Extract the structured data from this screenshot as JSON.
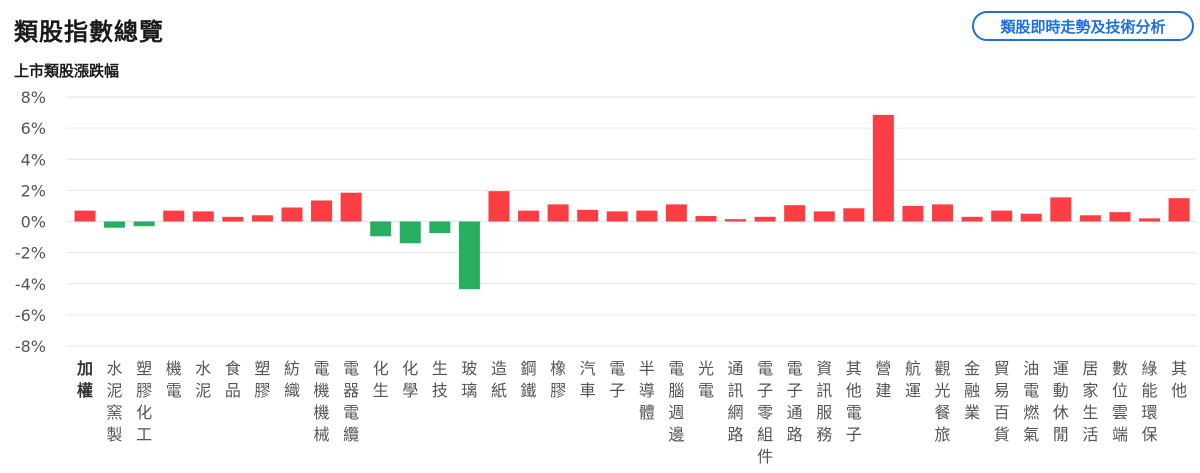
{
  "header": {
    "title": "類股指數總覽",
    "link_button_label": "類股即時走勢及技術分析"
  },
  "colors": {
    "up": "#fb3d44",
    "down": "#27ae60",
    "grid": "#e6e6e6",
    "accent": "#1f6fe0"
  },
  "chart_data": {
    "type": "bar",
    "title": "上市類股漲跌幅",
    "ylim": [
      -8,
      8
    ],
    "yticks": [
      "8%",
      "6%",
      "4%",
      "2%",
      "0%",
      "-2%",
      "-4%",
      "-6%",
      "-8%"
    ],
    "grid": true,
    "categories": [
      "加權",
      "水泥窯製",
      "塑膠化工",
      "機電",
      "水泥",
      "食品",
      "塑膠",
      "紡織",
      "電機機械",
      "電器電纜",
      "化生",
      "化學",
      "生技",
      "玻璃",
      "造紙",
      "鋼鐵",
      "橡膠",
      "汽車",
      "電子",
      "半導體",
      "電腦週邊",
      "光電",
      "通訊網路",
      "電子零組件",
      "電子通路",
      "資訊服務",
      "其他電子",
      "營建",
      "航運",
      "觀光餐旅",
      "金融業",
      "貿易百貨",
      "油電燃氣",
      "運動休閒",
      "居家生活",
      "數位雲端",
      "綠能環保",
      "其他"
    ],
    "values": [
      0.7,
      -0.4,
      -0.3,
      0.7,
      0.65,
      0.3,
      0.4,
      0.9,
      1.35,
      1.85,
      -0.95,
      -1.4,
      -0.75,
      -4.35,
      1.95,
      0.7,
      1.1,
      0.75,
      0.65,
      0.7,
      1.1,
      0.35,
      0.15,
      0.3,
      1.05,
      0.65,
      0.85,
      6.85,
      1.0,
      1.1,
      0.3,
      0.7,
      0.5,
      1.55,
      0.4,
      0.6,
      0.2,
      1.5
    ]
  }
}
